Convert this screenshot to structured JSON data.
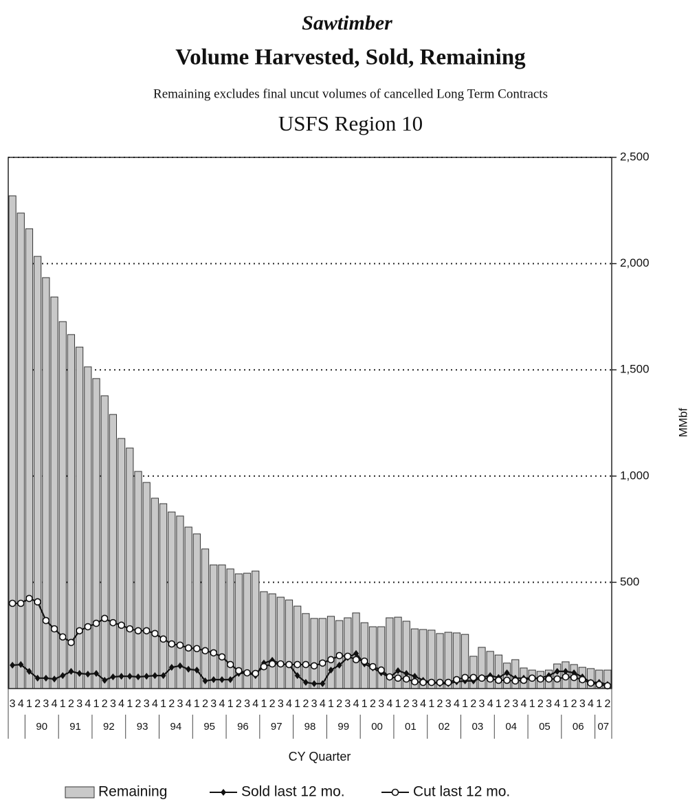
{
  "chart_data": {
    "type": "bar-line",
    "title": "Sawtimber",
    "subtitle": "Volume Harvested, Sold, Remaining",
    "note": "Remaining excludes final uncut volumes of cancelled Long Term Contracts",
    "region": "USFS Region 10",
    "y_label": "MMbf",
    "x_label": "CY Quarter",
    "categories": [
      "3",
      "4",
      "1",
      "2",
      "3",
      "4",
      "1",
      "2",
      "3",
      "4",
      "1",
      "2",
      "3",
      "4",
      "1",
      "2",
      "3",
      "4",
      "1",
      "2",
      "3",
      "4",
      "1",
      "2",
      "3",
      "4",
      "1",
      "2",
      "3",
      "4",
      "1",
      "2",
      "3",
      "4",
      "1",
      "2",
      "3",
      "4",
      "1",
      "2",
      "3",
      "4",
      "1",
      "2",
      "3",
      "4",
      "1",
      "2",
      "3",
      "4",
      "1",
      "2",
      "3",
      "4",
      "1",
      "2",
      "3",
      "4",
      "1",
      "2",
      "3",
      "4",
      "1",
      "2",
      "3",
      "4",
      "1",
      "2",
      "3",
      "4",
      "1",
      "2"
    ],
    "year_labels": [
      null,
      "90",
      "91",
      "92",
      "93",
      "94",
      "95",
      "96",
      "97",
      "98",
      "99",
      "00",
      "01",
      "02",
      "03",
      "04",
      "05",
      "06",
      "07"
    ],
    "ylim": [
      0,
      2500
    ],
    "yticks": [
      500,
      {
        "value": 1000,
        "label": "1,000"
      },
      {
        "value": 1500,
        "label": "1,500"
      },
      {
        "value": 2000,
        "label": "2,000"
      },
      {
        "value": 2500,
        "label": "2,500"
      }
    ],
    "grid": true,
    "series": [
      {
        "name": "Remaining",
        "type": "bar",
        "color": "#c9c9c9",
        "values": [
          2319,
          2238,
          2164,
          2034,
          1934,
          1843,
          1727,
          1666,
          1607,
          1514,
          1459,
          1378,
          1290,
          1177,
          1132,
          1022,
          970,
          896,
          870,
          831,
          812,
          760,
          728,
          657,
          582,
          582,
          563,
          540,
          543,
          553,
          456,
          446,
          430,
          417,
          388,
          353,
          330,
          330,
          340,
          320,
          333,
          356,
          310,
          291,
          291,
          333,
          336,
          317,
          281,
          278,
          275,
          259,
          265,
          262,
          255,
          152,
          194,
          175,
          158,
          120,
          136,
          97,
          87,
          81,
          87,
          116,
          126,
          113,
          100,
          94,
          87,
          87
        ]
      },
      {
        "name": "Sold last 12 mo.",
        "type": "line",
        "marker": "filled",
        "color": "#111111",
        "values": [
          110,
          113,
          81,
          49,
          49,
          45,
          61,
          81,
          71,
          68,
          71,
          39,
          55,
          58,
          58,
          55,
          58,
          61,
          61,
          100,
          107,
          91,
          87,
          36,
          42,
          42,
          42,
          71,
          74,
          61,
          120,
          133,
          116,
          113,
          61,
          29,
          23,
          23,
          87,
          110,
          146,
          165,
          116,
          97,
          74,
          52,
          84,
          71,
          58,
          39,
          29,
          23,
          23,
          32,
          36,
          36,
          52,
          61,
          52,
          74,
          49,
          49,
          49,
          49,
          61,
          81,
          81,
          74,
          55,
          29,
          29,
          19
        ]
      },
      {
        "name": "Cut last 12 mo.",
        "type": "line",
        "marker": "open",
        "color": "#111111",
        "values": [
          401,
          401,
          424,
          408,
          320,
          281,
          243,
          217,
          272,
          291,
          307,
          330,
          310,
          298,
          281,
          272,
          272,
          259,
          233,
          210,
          204,
          191,
          188,
          178,
          168,
          149,
          113,
          84,
          74,
          71,
          103,
          116,
          116,
          113,
          113,
          113,
          107,
          120,
          136,
          155,
          152,
          136,
          129,
          103,
          87,
          55,
          49,
          45,
          32,
          29,
          29,
          29,
          29,
          42,
          52,
          52,
          49,
          45,
          39,
          39,
          36,
          39,
          49,
          45,
          45,
          45,
          55,
          52,
          42,
          26,
          19,
          13
        ]
      }
    ]
  }
}
